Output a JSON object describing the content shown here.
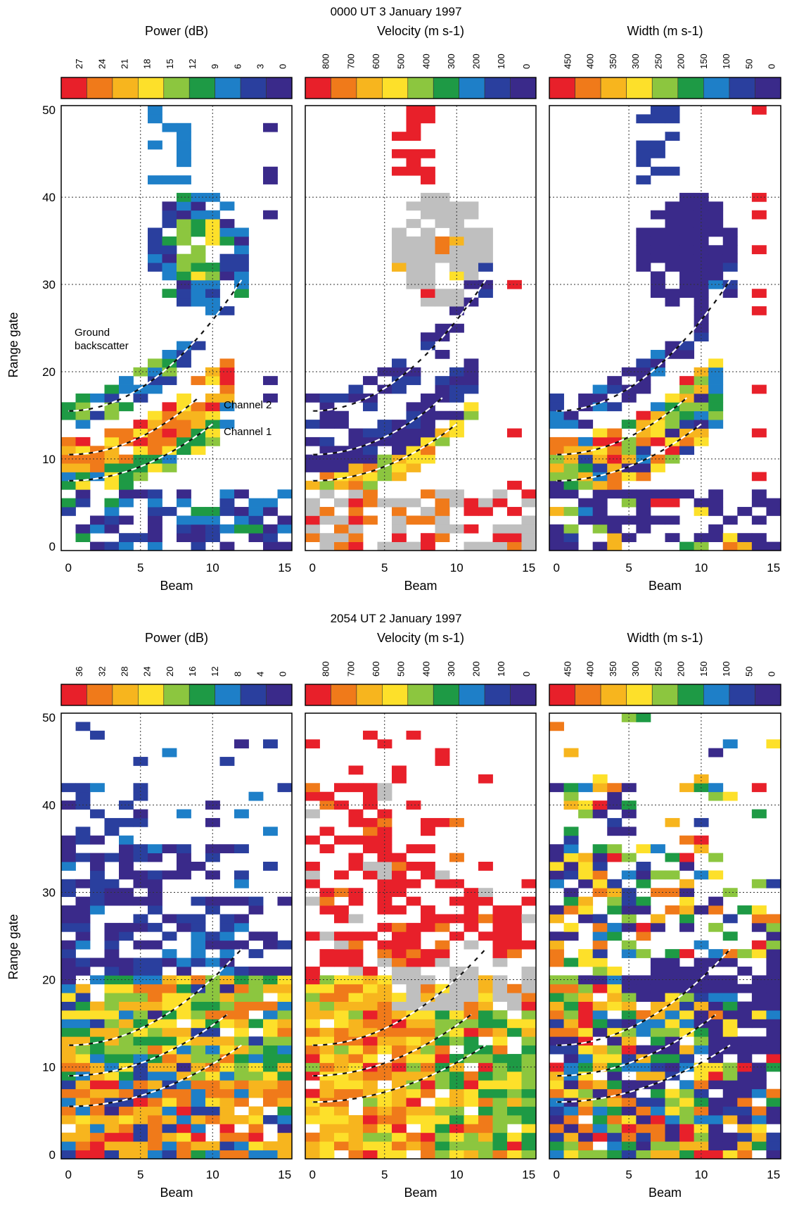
{
  "panels": [
    {
      "title": "0000 UT 3 January 1997",
      "annotations": {
        "ground": [
          "Ground",
          "backscatter"
        ],
        "channel2": "Channel 2",
        "channel1": "Channel 1"
      }
    },
    {
      "title": "2054 UT 2 January 1997",
      "annotations": null
    }
  ],
  "palette": [
    "#e8202a",
    "#f07a1a",
    "#f7b51e",
    "#fde02a",
    "#8cc63f",
    "#1e9a45",
    "#1e7fc8",
    "#2a3f9e",
    "#3a2a8a"
  ],
  "missing_color": "#bfbfbf",
  "chart_data": [
    {
      "type": "heatmap",
      "title": "Power (dB)",
      "group": "0000 UT 3 January 1997",
      "xlabel": "Beam",
      "ylabel": "Range gate",
      "xlim": [
        0,
        15
      ],
      "ylim": [
        0,
        50
      ],
      "x_ticks": [
        0,
        5,
        10,
        15
      ],
      "y_ticks": [
        0,
        10,
        20,
        30,
        40,
        50
      ],
      "colorbar_labels": [
        "27",
        "24",
        "21",
        "18",
        "15",
        "12",
        "9",
        "6",
        "3",
        "0"
      ],
      "grid": true,
      "fit_curves": [
        [
          0,
          15.5,
          12,
          30.5
        ],
        [
          0,
          10.5,
          9,
          17
        ],
        [
          0,
          7.5,
          10,
          14
        ]
      ]
    },
    {
      "type": "heatmap",
      "title": "Velocity (m s-1)",
      "group": "0000 UT 3 January 1997",
      "xlabel": "Beam",
      "ylabel": "",
      "xlim": [
        0,
        15
      ],
      "ylim": [
        0,
        50
      ],
      "x_ticks": [
        0,
        5,
        10,
        15
      ],
      "colorbar_labels": [
        "800",
        "700",
        "600",
        "500",
        "400",
        "300",
        "200",
        "100",
        "0"
      ],
      "grid": true,
      "fit_curves": [
        [
          0,
          15.5,
          12,
          30.5
        ],
        [
          0,
          10.5,
          9,
          17
        ],
        [
          0,
          7.5,
          10,
          14
        ]
      ]
    },
    {
      "type": "heatmap",
      "title": "Width (m s-1)",
      "group": "0000 UT 3 January 1997",
      "xlabel": "Beam",
      "ylabel": "",
      "xlim": [
        0,
        15
      ],
      "ylim": [
        0,
        50
      ],
      "x_ticks": [
        0,
        5,
        10,
        15
      ],
      "colorbar_labels": [
        "450",
        "400",
        "350",
        "300",
        "250",
        "200",
        "150",
        "100",
        "50",
        "0"
      ],
      "grid": true,
      "fit_curves": [
        [
          0,
          15.5,
          12,
          30.5
        ],
        [
          0,
          10.5,
          9,
          17
        ],
        [
          0,
          7.5,
          10,
          14
        ]
      ]
    },
    {
      "type": "heatmap",
      "title": "Power (dB)",
      "group": "2054 UT 2 January 1997",
      "xlabel": "Beam",
      "ylabel": "Range gate",
      "xlim": [
        0,
        15
      ],
      "ylim": [
        0,
        50
      ],
      "x_ticks": [
        0,
        5,
        10,
        15
      ],
      "y_ticks": [
        0,
        10,
        20,
        30,
        40,
        50
      ],
      "colorbar_labels": [
        "36",
        "32",
        "28",
        "24",
        "20",
        "16",
        "12",
        "8",
        "4",
        "0"
      ],
      "grid": true,
      "fit_curves": [
        [
          0,
          12.5,
          12,
          23.5
        ],
        [
          0,
          9,
          11,
          16
        ],
        [
          0,
          5.5,
          12,
          12.5
        ]
      ]
    },
    {
      "type": "heatmap",
      "title": "Velocity (m s-1)",
      "group": "2054 UT 2 January 1997",
      "xlabel": "Beam",
      "ylabel": "",
      "xlim": [
        0,
        15
      ],
      "ylim": [
        0,
        50
      ],
      "x_ticks": [
        0,
        5,
        10,
        15
      ],
      "colorbar_labels": [
        "800",
        "700",
        "600",
        "500",
        "400",
        "300",
        "200",
        "100",
        "0"
      ],
      "grid": true,
      "fit_curves": [
        [
          0,
          12.5,
          12,
          23.5
        ],
        [
          0,
          9,
          11,
          16
        ],
        [
          0,
          6,
          12,
          12.5
        ]
      ]
    },
    {
      "type": "heatmap",
      "title": "Width (m s-1)",
      "group": "2054 UT 2 January 1997",
      "xlabel": "Beam",
      "ylabel": "",
      "xlim": [
        0,
        15
      ],
      "ylim": [
        0,
        50
      ],
      "x_ticks": [
        0,
        5,
        10,
        15
      ],
      "colorbar_labels": [
        "450",
        "400",
        "350",
        "300",
        "250",
        "200",
        "150",
        "100",
        "50",
        "0"
      ],
      "grid": true,
      "fit_curves": [
        [
          0,
          12.5,
          12,
          23.5
        ],
        [
          0,
          9,
          11,
          16
        ],
        [
          0,
          6,
          12,
          12.5
        ]
      ]
    }
  ]
}
